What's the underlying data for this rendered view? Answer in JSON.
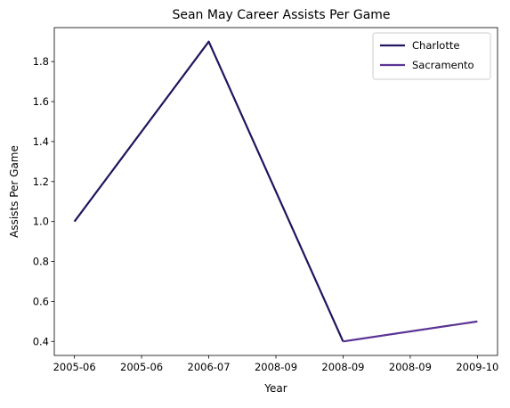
{
  "chart_data": {
    "type": "line",
    "title": "Sean May Career Assists Per Game",
    "xlabel": "Year",
    "ylabel": "Assists Per Game",
    "x_tick_labels": [
      "2005-06",
      "2005-06",
      "2006-07",
      "2008-09",
      "2008-09",
      "2008-09",
      "2009-10"
    ],
    "y_ticks": [
      0.4,
      0.6,
      0.8,
      1.0,
      1.2,
      1.4,
      1.6,
      1.8
    ],
    "xlim": [
      -0.15,
      3.15
    ],
    "ylim": [
      0.33,
      1.97
    ],
    "grid": false,
    "legend_position": "upper right",
    "series": [
      {
        "name": "Charlotte",
        "color": "#22145e",
        "x": [
          "2005-06",
          "2006-07",
          "2008-09"
        ],
        "y": [
          1.0,
          1.9,
          0.4
        ]
      },
      {
        "name": "Sacramento",
        "color": "#5b3393",
        "x": [
          "2008-09",
          "2009-10"
        ],
        "y": [
          0.4,
          0.5
        ]
      }
    ]
  }
}
